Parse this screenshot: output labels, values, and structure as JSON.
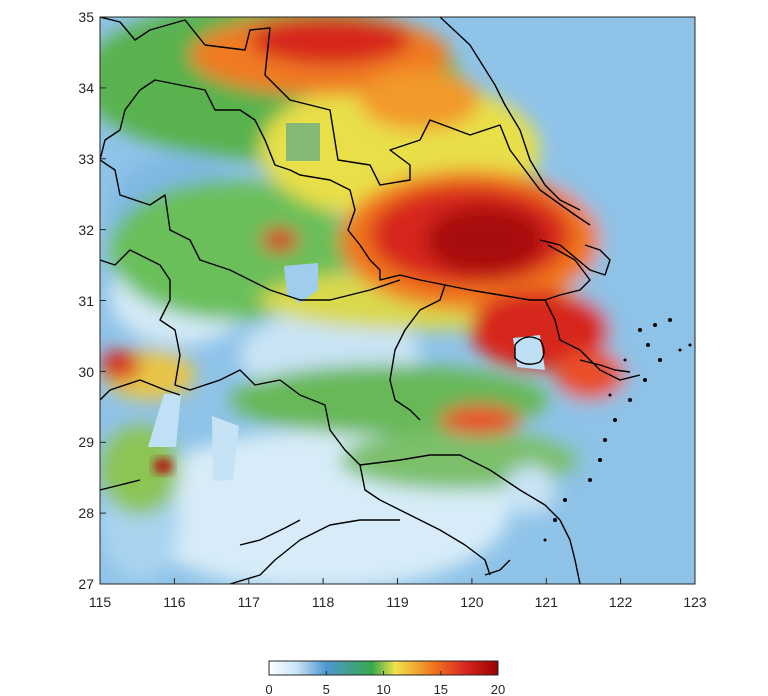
{
  "map": {
    "x_ticks": [
      "115",
      "116",
      "117",
      "118",
      "119",
      "120",
      "121",
      "122",
      "123"
    ],
    "y_ticks": [
      "35",
      "34",
      "33",
      "32",
      "31",
      "30",
      "29",
      "28",
      "27"
    ],
    "lon_range": [
      115,
      123
    ],
    "lat_range": [
      27,
      35
    ]
  },
  "colorbar": {
    "ticks": [
      "0",
      "5",
      "10",
      "15",
      "20"
    ],
    "range": [
      0,
      20
    ],
    "colors": [
      "#ffffff",
      "#a9d4ef",
      "#4f97d2",
      "#36a84a",
      "#f0e24a",
      "#f0761f",
      "#d7261e",
      "#990000"
    ]
  }
}
